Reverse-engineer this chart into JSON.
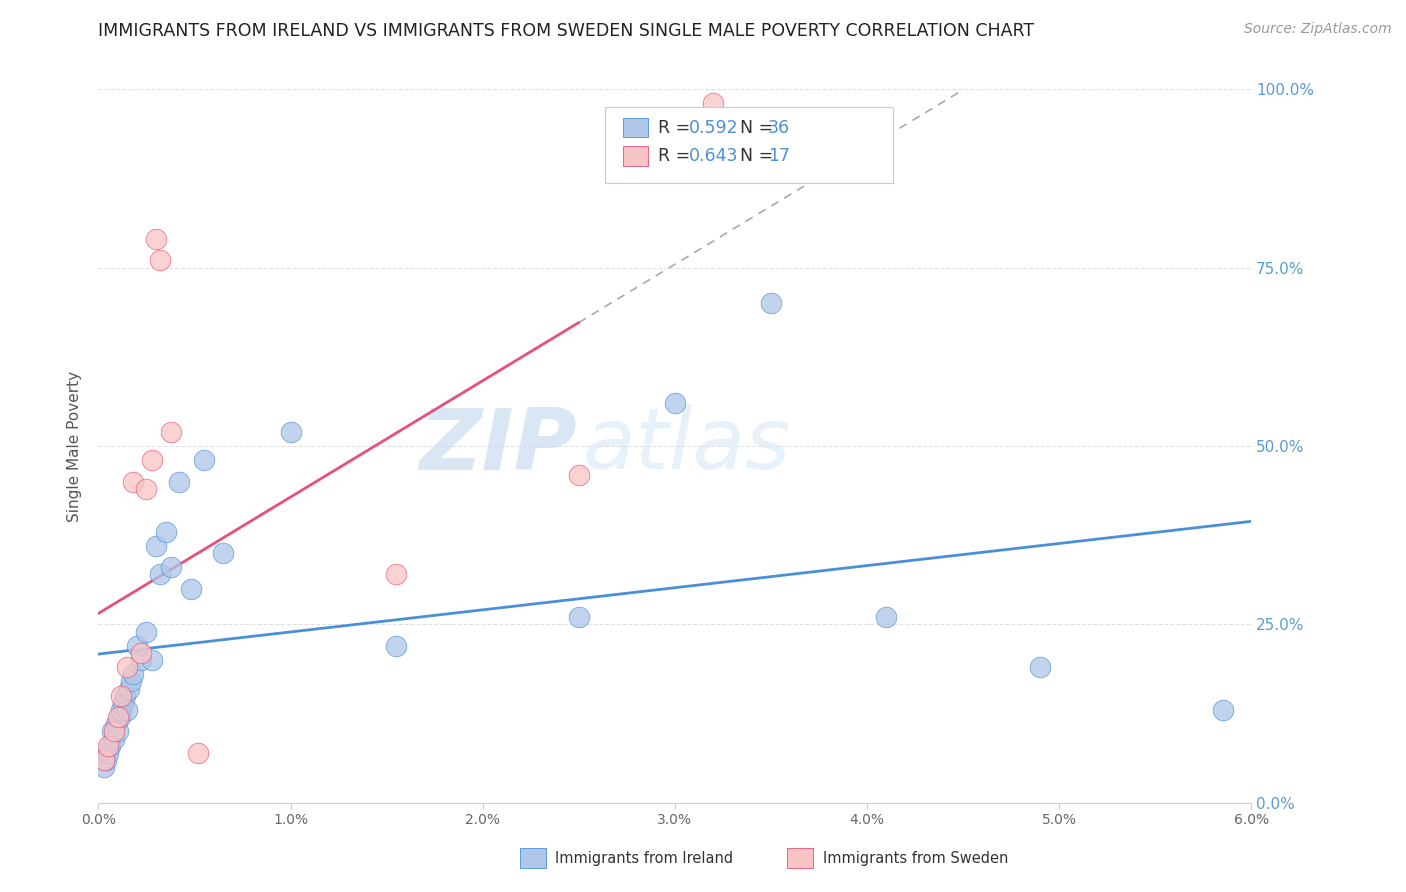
{
  "title": "IMMIGRANTS FROM IRELAND VS IMMIGRANTS FROM SWEDEN SINGLE MALE POVERTY CORRELATION CHART",
  "source": "Source: ZipAtlas.com",
  "ylabel": "Single Male Poverty",
  "legend_label1": "Immigrants from Ireland",
  "legend_label2": "Immigrants from Sweden",
  "R1": 0.592,
  "N1": 36,
  "R2": 0.643,
  "N2": 17,
  "color_ireland": "#aec6e8",
  "color_sweden": "#f9c4c4",
  "line_color_ireland": "#4a90d9",
  "line_color_sweden": "#e8507a",
  "watermark_zip": "ZIP",
  "watermark_atlas": "atlas",
  "xlim": [
    0.0,
    6.0
  ],
  "ylim": [
    0.0,
    100.0
  ],
  "ireland_x": [
    0.03,
    0.04,
    0.05,
    0.06,
    0.07,
    0.08,
    0.09,
    0.1,
    0.11,
    0.12,
    0.13,
    0.14,
    0.15,
    0.16,
    0.17,
    0.18,
    0.2,
    0.22,
    0.25,
    0.28,
    0.3,
    0.32,
    0.35,
    0.38,
    0.42,
    0.48,
    0.55,
    0.65,
    1.0,
    1.55,
    2.5,
    3.0,
    3.5,
    4.1,
    4.9,
    5.85
  ],
  "ireland_y": [
    5,
    6,
    7,
    8,
    10,
    9,
    11,
    10,
    12,
    13,
    14,
    15,
    13,
    16,
    17,
    18,
    22,
    20,
    24,
    20,
    36,
    32,
    38,
    33,
    45,
    30,
    48,
    35,
    52,
    22,
    26,
    56,
    70,
    26,
    19,
    13
  ],
  "sweden_x": [
    0.03,
    0.05,
    0.08,
    0.1,
    0.12,
    0.15,
    0.18,
    0.22,
    0.25,
    0.28,
    0.3,
    0.32,
    0.38,
    0.52,
    1.55,
    2.5,
    3.2
  ],
  "sweden_y": [
    6,
    8,
    10,
    12,
    15,
    19,
    45,
    21,
    44,
    48,
    79,
    76,
    52,
    7,
    32,
    46,
    98
  ]
}
